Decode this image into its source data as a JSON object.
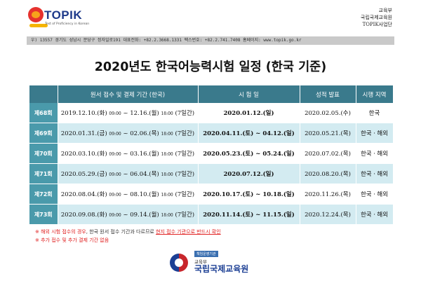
{
  "header": {
    "logo_name": "TOPIK",
    "logo_sub": "Test of Proficiency in Korean",
    "org_line1": "교육부",
    "org_line2": "국립국제교육원",
    "org_line3": "TOPIK사업단"
  },
  "address_bar": "우) 13557 경기도 성남시 분당구 정자일로191  대표전화: +82.2.3668.1331  팩스번호: +82.2.741.7408  홈페이지: www.topik.go.kr",
  "title": "2020년도 한국어능력시험 일정 (한국 기준)",
  "table": {
    "headers": [
      "",
      "원서 접수 및 결제 기간 (한국)",
      "시 험 일",
      "성적 발표",
      "시행 지역"
    ],
    "rows": [
      {
        "round": "제68회",
        "reg_start": "2019.12.10.(화)",
        "reg_start_time": "09:00",
        "reg_end": "12.16.(월)",
        "reg_end_time": "18:00",
        "reg_days": "(7일간)",
        "exam": "2020.01.12.(일)",
        "result": "2020.02.05.(수)",
        "region": "한국"
      },
      {
        "round": "제69회",
        "reg_start": "2020.01.31.(금)",
        "reg_start_time": "09:00",
        "reg_end": "02.06.(목)",
        "reg_end_time": "18:00",
        "reg_days": "(7일간)",
        "exam": "2020.04.11.(토) ~ 04.12.(일)",
        "result": "2020.05.21.(목)",
        "region": "한국ㆍ해외"
      },
      {
        "round": "제70회",
        "reg_start": "2020.03.10.(화)",
        "reg_start_time": "09:00",
        "reg_end": "03.16.(월)",
        "reg_end_time": "18:00",
        "reg_days": "(7일간)",
        "exam": "2020.05.23.(토) ~ 05.24.(일)",
        "result": "2020.07.02.(목)",
        "region": "한국ㆍ해외"
      },
      {
        "round": "제71회",
        "reg_start": "2020.05.29.(금)",
        "reg_start_time": "09:00",
        "reg_end": "06.04.(목)",
        "reg_end_time": "18:00",
        "reg_days": "(7일간)",
        "exam": "2020.07.12.(일)",
        "result": "2020.08.20.(목)",
        "region": "한국ㆍ해외"
      },
      {
        "round": "제72회",
        "reg_start": "2020.08.04.(화)",
        "reg_start_time": "09:00",
        "reg_end": "08.10.(월)",
        "reg_end_time": "18:00",
        "reg_days": "(7일간)",
        "exam": "2020.10.17.(토) ~ 10.18.(일)",
        "result": "2020.11.26.(목)",
        "region": "한국ㆍ해외"
      },
      {
        "round": "제73회",
        "reg_start": "2020.09.08.(화)",
        "reg_start_time": "09:00",
        "reg_end": "09.14.(월)",
        "reg_end_time": "18:00",
        "reg_days": "(7일간)",
        "exam": "2020.11.14.(토) ~ 11.15.(일)",
        "result": "2020.12.24.(목)",
        "region": "한국ㆍ해외"
      }
    ]
  },
  "notes": {
    "mark": "※",
    "n1_a": "해외 시험 접수의 경우",
    "n1_b": ", 한국 원서 접수 기간과 다르므로 ",
    "n1_c": "현지 접수 기관으로 반드시 확인",
    "n2": "추가 접수 및 추가 결제 기간 없음"
  },
  "footer": {
    "badge": "책임운영기관",
    "sub": "교육부",
    "name": "국립국제교육원"
  },
  "colors": {
    "header_bg": "#3a7a8c",
    "round_bg": "#4a9aab",
    "stripe": "#d3ebf1",
    "note_red": "#e02020"
  }
}
